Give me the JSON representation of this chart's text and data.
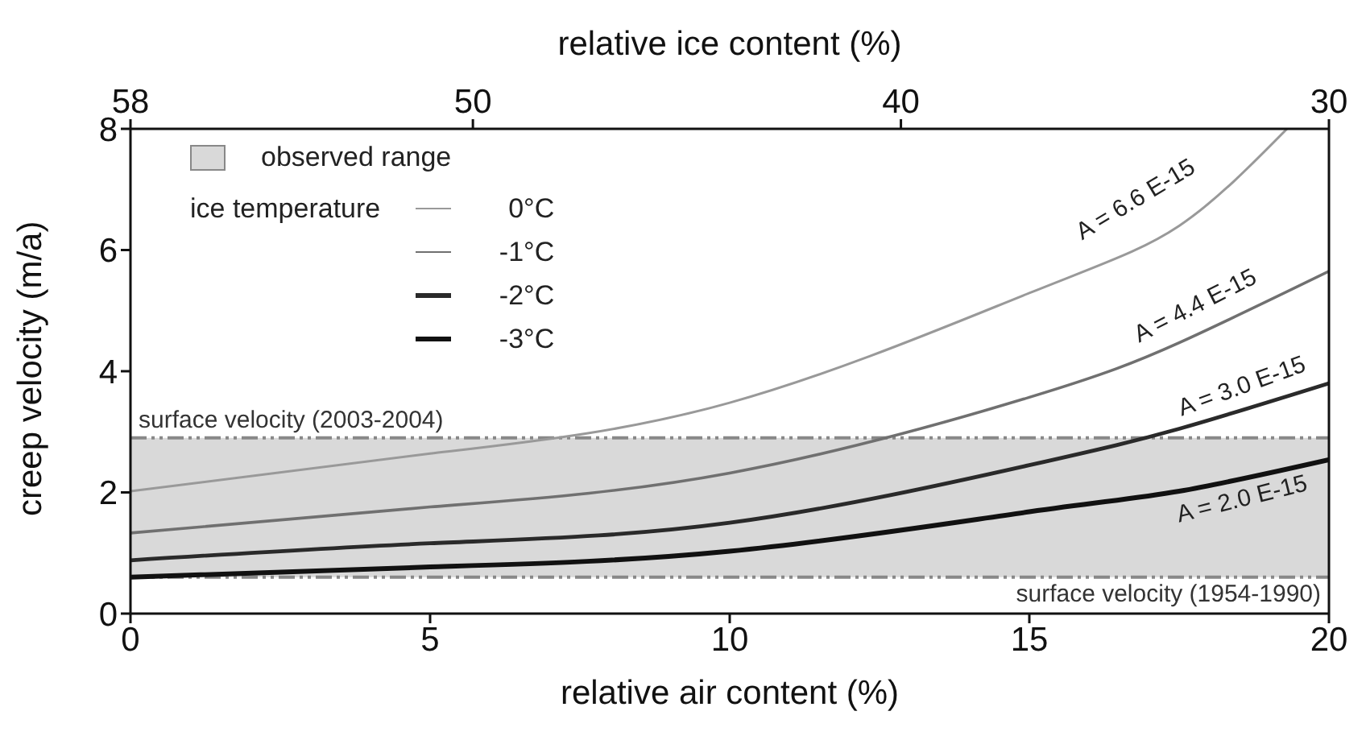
{
  "chart_data": {
    "type": "line",
    "xlabel": "relative air content (%)",
    "ylabel": "creep velocity (m/a)",
    "x2label": "relative ice content (%)",
    "legend_title": "ice temperature",
    "legend": "top left",
    "xlim": [
      0,
      20
    ],
    "xticks": [
      0,
      5,
      10,
      15,
      20
    ],
    "ylim": [
      0,
      8
    ],
    "yticks": [
      0,
      2,
      4,
      6,
      8
    ],
    "x2lim": [
      58,
      30
    ],
    "x2ticks": [
      58,
      50,
      40,
      30
    ],
    "marker": "none",
    "line_style": "solid",
    "series": [
      {
        "name": "0°C",
        "color": "#999999",
        "x": [
          0,
          5,
          10,
          15,
          17.5,
          19.3
        ],
        "values": [
          2.02,
          2.64,
          3.48,
          5.29,
          6.4,
          8
        ]
      },
      {
        "name": "-1°C",
        "color": "#707070",
        "x": [
          0,
          5,
          10,
          15,
          17.5,
          20
        ],
        "values": [
          1.33,
          1.76,
          2.32,
          3.57,
          4.47,
          5.65
        ]
      },
      {
        "name": "-2°C",
        "color": "#2a2a2a",
        "x": [
          0,
          5,
          10,
          15,
          17.5,
          20
        ],
        "values": [
          0.88,
          1.16,
          1.5,
          2.45,
          3.05,
          3.8
        ]
      },
      {
        "name": "-3°C",
        "color": "#111111",
        "x": [
          0,
          5,
          10,
          15,
          17.5,
          20
        ],
        "values": [
          0.6,
          0.77,
          1.03,
          1.68,
          2.02,
          2.54
        ]
      }
    ],
    "bands": [
      {
        "axis": "y",
        "from": 0.6,
        "to": 2.9,
        "label": "observed range",
        "color": "#d9d9d9"
      }
    ],
    "ref_lines": [
      {
        "axis": "y",
        "value": 2.9,
        "label": "surface velocity (2003-2004)",
        "color": "#888888",
        "line_style": "dashed"
      },
      {
        "axis": "y",
        "value": 0.6,
        "label": "surface velocity (1954-1990)",
        "color": "#888888",
        "line_style": "dashed"
      }
    ],
    "annotations": [
      "A = 6.6 E-15",
      "A = 4.4 E-15",
      "A = 3.0 E-15",
      "A = 2.0 E-15"
    ]
  }
}
